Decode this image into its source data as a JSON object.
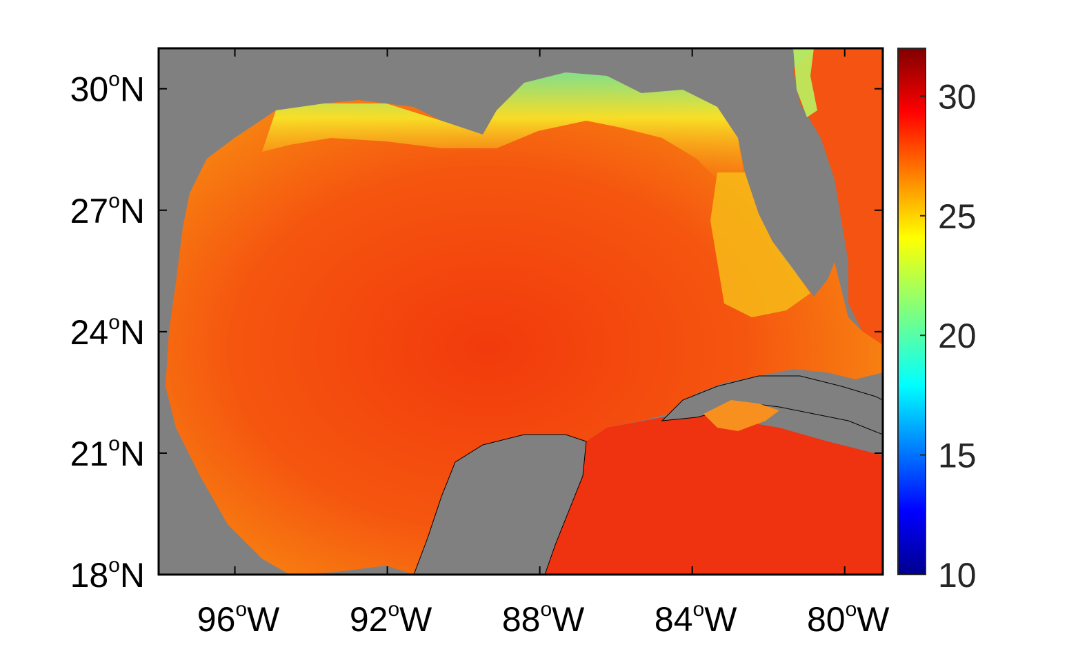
{
  "map": {
    "lat_ticks": [
      {
        "value": 30,
        "num": "30",
        "hemi": "N"
      },
      {
        "value": 27,
        "num": "27",
        "hemi": "N"
      },
      {
        "value": 24,
        "num": "24",
        "hemi": "N"
      },
      {
        "value": 21,
        "num": "21",
        "hemi": "N"
      },
      {
        "value": 18,
        "num": "18",
        "hemi": "N"
      }
    ],
    "lon_ticks": [
      {
        "value": -96,
        "num": "96",
        "hemi": "W"
      },
      {
        "value": -92,
        "num": "92",
        "hemi": "W"
      },
      {
        "value": -88,
        "num": "88",
        "hemi": "W"
      },
      {
        "value": -84,
        "num": "84",
        "hemi": "W"
      },
      {
        "value": -80,
        "num": "80",
        "hemi": "W"
      }
    ],
    "lon_range": [
      -98,
      -79
    ],
    "lat_range": [
      18,
      31
    ],
    "degree_symbol": "o",
    "land_color": "#808080",
    "frame_color": "#000000"
  },
  "colorbar": {
    "range": [
      10,
      32
    ],
    "ticks": [
      "30",
      "25",
      "20",
      "15",
      "10"
    ],
    "tick_values": [
      30,
      25,
      20,
      15,
      10
    ],
    "colormap": "jet"
  }
}
